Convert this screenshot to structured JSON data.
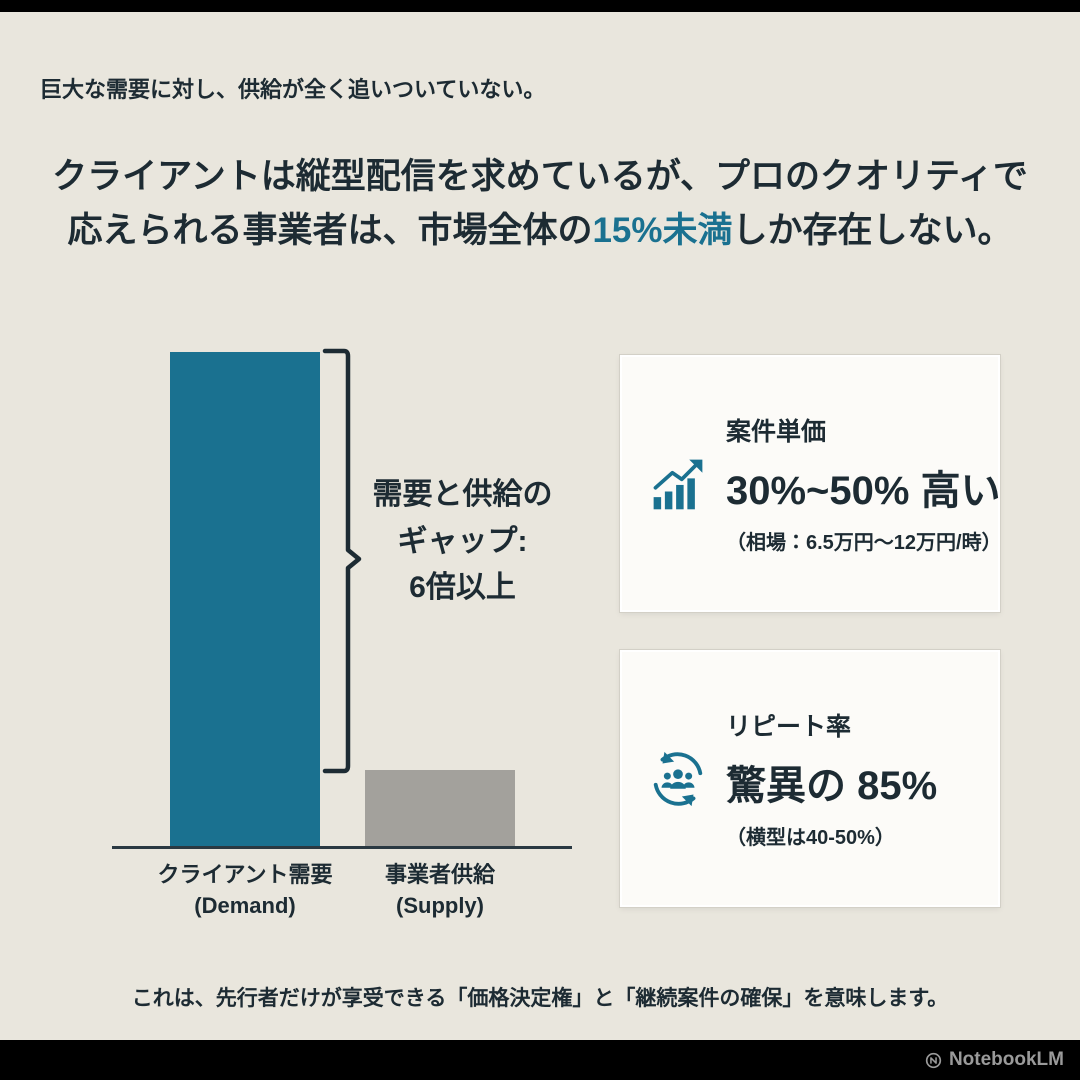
{
  "colors": {
    "background": "#e9e6dd",
    "ink": "#1d2b33",
    "accent_teal": "#1a7190",
    "supply_gray": "#a3a19c",
    "card_background": "#fcfbf8"
  },
  "eyebrow": "巨大な需要に対し、供給が全く追いついていない。",
  "title": {
    "line1": "クライアントは縦型配信を求めているが、プロのクオリティで",
    "line2_pre": "応えられる事業者は、市場全体の",
    "line2_highlight": "15%未満",
    "line2_post": "しか存在しない。"
  },
  "chart_data": {
    "type": "bar",
    "categories": [
      [
        "クライアント需要",
        "(Demand)"
      ],
      [
        "事業者供給",
        "(Supply)"
      ]
    ],
    "values": [
      6.5,
      1
    ],
    "bar_colors": [
      "#1a7190",
      "#a3a19c"
    ],
    "annotation": [
      "需要と供給の",
      "ギャップ:",
      "6倍以上"
    ],
    "title": "",
    "xlabel": "",
    "ylabel": "",
    "ylim": [
      0,
      6.5
    ],
    "grid": false,
    "legend": false
  },
  "cards": [
    {
      "icon": "growth-chart-icon",
      "label": "案件単価",
      "value": "30%~50% 高い",
      "note": "（相場：6.5万円〜12万円/時）"
    },
    {
      "icon": "repeat-customers-icon",
      "label": "リピート率",
      "value": "驚異の 85%",
      "note": "（横型は40-50%）"
    }
  ],
  "footer": "これは、先行者だけが享受できる「価格決定権」と「継続案件の確保」を意味します。",
  "watermark": "NotebookLM"
}
